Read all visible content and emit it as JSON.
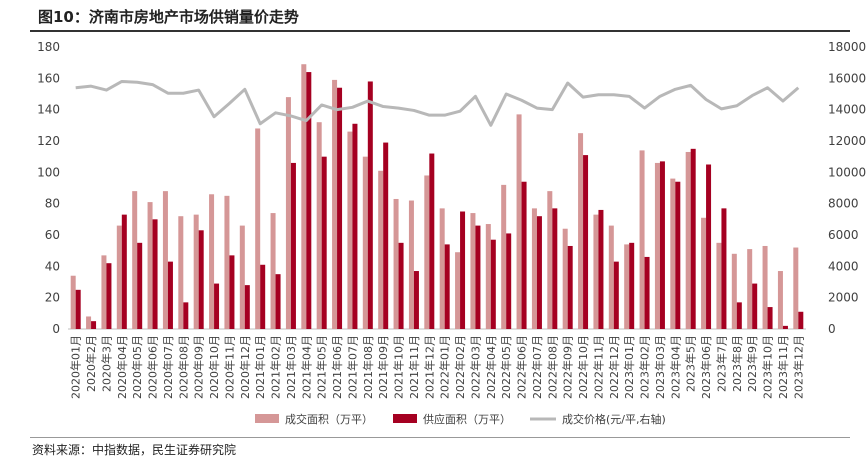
{
  "title": "图10：济南市房地产市场供销量价走势",
  "source": "资料来源：中指数据，民生证券研究院",
  "colors": {
    "sales": "#d59797",
    "supply": "#a50021",
    "price": "#b8b8b8"
  },
  "chart_data": {
    "type": "bar",
    "categories": [
      "2020年01月",
      "2020年2月",
      "2020年3月",
      "2020年04月",
      "2020年05月",
      "2020年06月",
      "2020年07月",
      "2020年08月",
      "2020年09月",
      "2020年10月",
      "2020年11月",
      "2020年12月",
      "2021年01月",
      "2021年02月",
      "2021年03月",
      "2021年04月",
      "2021年05月",
      "2021年06月",
      "2021年07月",
      "2021年08月",
      "2021年09月",
      "2021年10月",
      "2021年11月",
      "2021年12月",
      "2022年01月",
      "2022年02月",
      "2022年03月",
      "2022年04月",
      "2022年05月",
      "2022年06月",
      "2022年07月",
      "2022年08月",
      "2022年09月",
      "2022年10月",
      "2022年11月",
      "2022年12月",
      "2023年01月",
      "2023年02月",
      "2023年03月",
      "2023年04月",
      "2023年5月",
      "2023年06月",
      "2023年7月",
      "2023年8月",
      "2023年9月",
      "2023年10月",
      "2023年11月",
      "2023年12月"
    ],
    "series": [
      {
        "name": "成交面积（万平）",
        "axis": "left",
        "values": [
          34,
          8,
          47,
          66,
          88,
          81,
          88,
          72,
          73,
          86,
          85,
          66,
          128,
          74,
          148,
          169,
          132,
          159,
          126,
          110,
          101,
          83,
          82,
          98,
          77,
          49,
          74,
          67,
          92,
          137,
          77,
          88,
          64,
          125,
          73,
          66,
          54,
          114,
          106,
          96,
          113,
          71,
          55,
          48,
          51,
          53,
          37,
          52
        ]
      },
      {
        "name": "供应面积（万平）",
        "axis": "left",
        "values": [
          25,
          5,
          42,
          73,
          55,
          70,
          43,
          17,
          63,
          29,
          47,
          28,
          41,
          35,
          106,
          164,
          110,
          154,
          131,
          158,
          119,
          55,
          37,
          112,
          54,
          75,
          66,
          57,
          61,
          94,
          72,
          77,
          53,
          111,
          76,
          43,
          55,
          46,
          107,
          94,
          115,
          105,
          77,
          17,
          29,
          14,
          2,
          11
        ]
      },
      {
        "name": "成交价格(元/平,右轴)",
        "axis": "right",
        "values": [
          15400,
          15500,
          15250,
          15800,
          15750,
          15600,
          15050,
          15050,
          15250,
          13550,
          14400,
          15300,
          13100,
          13800,
          13600,
          13300,
          14300,
          14000,
          14150,
          14550,
          14200,
          14100,
          13950,
          13650,
          13650,
          13900,
          14850,
          13000,
          15000,
          14600,
          14100,
          14000,
          15700,
          14800,
          14950,
          14950,
          14850,
          14100,
          14850,
          15300,
          15550,
          14650,
          14050,
          14250,
          14900,
          15400,
          14550,
          15400
        ]
      }
    ],
    "yleft": {
      "min": 0,
      "max": 180,
      "step": 20
    },
    "yright": {
      "min": 0,
      "max": 18000,
      "step": 2000
    },
    "legend_position": "bottom",
    "grid": false
  }
}
